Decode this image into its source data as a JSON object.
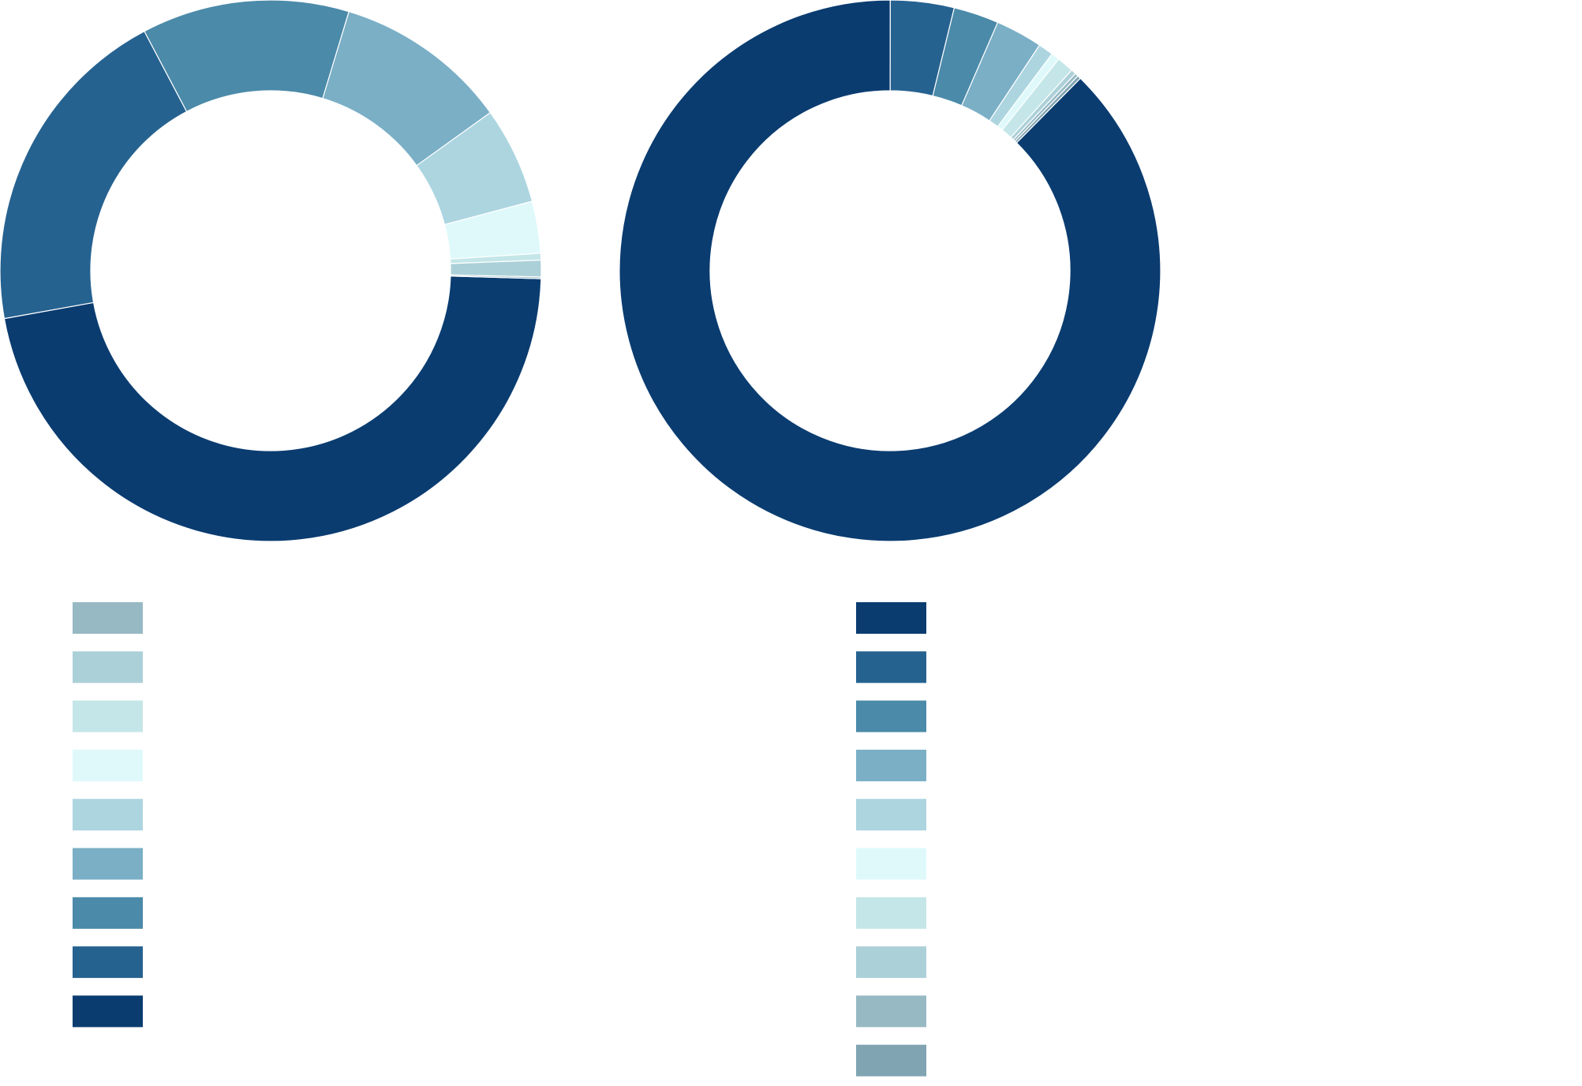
{
  "charts": [
    {
      "chart_data": {
        "type": "donut",
        "legend_reversed": true,
        "series": [
          {
            "color": "#0a3c70",
            "values": [
              46.7
            ]
          },
          {
            "color": "#266290",
            "values": [
              20.1
            ]
          },
          {
            "color": "#4b8aa9",
            "values": [
              12.4
            ]
          },
          {
            "color": "#7aafc6",
            "values": [
              10.4
            ]
          },
          {
            "color": "#acd5e0",
            "values": [
              5.8
            ]
          },
          {
            "color": "#dff9fb",
            "values": [
              3.1
            ]
          },
          {
            "color": "#c4e6e8",
            "values": [
              0.4
            ]
          },
          {
            "color": "#acd0d8",
            "values": [
              1.0
            ]
          },
          {
            "color": "#97b9c4",
            "values": [
              0.1
            ]
          }
        ]
      }
    },
    {
      "chart_data": {
        "type": "donut",
        "legend_reversed": false,
        "series": [
          {
            "color": "#0a3c70",
            "values": [
              87.6
            ]
          },
          {
            "color": "#266290",
            "values": [
              3.8
            ]
          },
          {
            "color": "#4b8aa9",
            "values": [
              2.7
            ]
          },
          {
            "color": "#7aafc6",
            "values": [
              2.8
            ]
          },
          {
            "color": "#acd5e0",
            "values": [
              0.9
            ]
          },
          {
            "color": "#dff9fb",
            "values": [
              0.5
            ]
          },
          {
            "color": "#c4e6e8",
            "values": [
              1.0
            ]
          },
          {
            "color": "#acd0d8",
            "values": [
              0.3
            ]
          },
          {
            "color": "#97b9c4",
            "values": [
              0.2
            ]
          },
          {
            "color": "#80a4b2",
            "values": [
              0.2
            ]
          }
        ]
      }
    }
  ]
}
